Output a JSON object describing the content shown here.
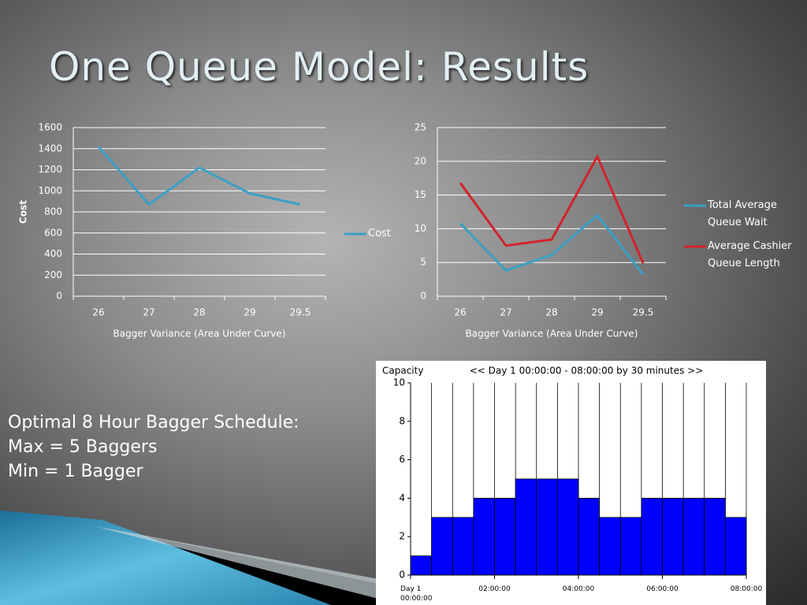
{
  "title": "One Queue Model: Results",
  "notes": [
    "Optimal 8 Hour Bagger Schedule:",
    "Max = 5 Baggers",
    "Min = 1 Bagger"
  ],
  "chart_data": [
    {
      "type": "line",
      "categories": [
        "26",
        "27",
        "28",
        "29",
        "29.5"
      ],
      "series": [
        {
          "name": "Cost",
          "color": "#3b9fc6",
          "values": [
            1420,
            870,
            1220,
            975,
            870
          ]
        }
      ],
      "ylim": [
        0,
        1600
      ],
      "yticks": [
        0,
        200,
        400,
        600,
        800,
        1000,
        1200,
        1400,
        1600
      ],
      "xlabel": "Bagger Variance (Area Under Curve)",
      "ylabel": "Cost",
      "grid": true,
      "legend": "right"
    },
    {
      "type": "line",
      "categories": [
        "26",
        "27",
        "28",
        "29",
        "29.5"
      ],
      "series": [
        {
          "name": "Total Average Queue Wait",
          "color": "#3b9fc6",
          "values": [
            10.8,
            3.8,
            6.1,
            12.0,
            3.2
          ]
        },
        {
          "name": "Average Cashier Queue Length",
          "color": "#d2232a",
          "values": [
            16.8,
            7.5,
            8.4,
            20.7,
            4.9
          ]
        }
      ],
      "ylim": [
        0,
        25
      ],
      "yticks": [
        0,
        5,
        10,
        15,
        20,
        25
      ],
      "xlabel": "Bagger Variance (Area Under Curve)",
      "grid": true,
      "legend": "right"
    },
    {
      "type": "histogram",
      "title": "<< Day 1  00:00:00 - 08:00:00  by 30 minutes >>",
      "ylabel": "Capacity",
      "bins": [
        0,
        0.5,
        1,
        1.5,
        2,
        2.5,
        3,
        3.5,
        4,
        4.5,
        5,
        5.5,
        6,
        6.5,
        7,
        7.5,
        8
      ],
      "counts": [
        1,
        3,
        3,
        4,
        4,
        5,
        5,
        5,
        4,
        3,
        3,
        4,
        4,
        4,
        4,
        3
      ],
      "color": "#0000ff",
      "xlim": [
        0,
        8
      ],
      "xticks": [
        {
          "value": 0,
          "label": "Day 1\n00:00:00"
        },
        {
          "value": 2,
          "label": "02:00:00"
        },
        {
          "value": 4,
          "label": "04:00:00"
        },
        {
          "value": 6,
          "label": "06:00:00"
        },
        {
          "value": 8,
          "label": "08:00:00"
        }
      ],
      "ylim": [
        0,
        10
      ],
      "yticks": [
        0,
        2,
        4,
        6,
        8,
        10
      ]
    }
  ]
}
